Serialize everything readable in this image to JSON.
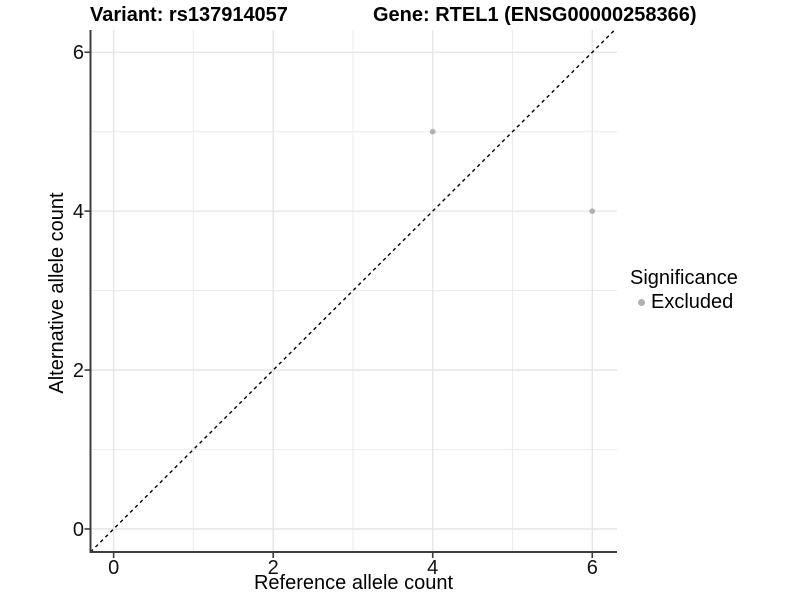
{
  "chart_data": {
    "type": "scatter",
    "title_left": "Variant: rs137914057",
    "title_right": "Gene: RTEL1 (ENSG00000258366)",
    "xlabel": "Reference allele count",
    "ylabel": "Alternative allele count",
    "x_ticks": [
      0,
      2,
      4,
      6
    ],
    "y_ticks": [
      0,
      2,
      4,
      6
    ],
    "x_minor_ticks": [
      1,
      3,
      5
    ],
    "y_minor_ticks": [
      1,
      3,
      5
    ],
    "xlim": [
      -0.29,
      6.31
    ],
    "ylim": [
      -0.29,
      6.28
    ],
    "grid": true,
    "series": [
      {
        "name": "Excluded",
        "color": "#b0b0b0",
        "points": [
          {
            "x": 4,
            "y": 5
          },
          {
            "x": 6,
            "y": 4
          }
        ]
      }
    ],
    "reference_line": {
      "kind": "identity",
      "style": "dashed",
      "color": "#000000"
    },
    "legend": {
      "position": "right",
      "title": "Significance",
      "entries": [
        {
          "label": "Excluded",
          "color": "#b0b0b0"
        }
      ]
    },
    "colors": {
      "axis": "#3d3d3d",
      "grid_major": "#e4e4e4",
      "grid_minor": "#ededed",
      "tick_label": "#111111",
      "background": "#ffffff"
    }
  }
}
